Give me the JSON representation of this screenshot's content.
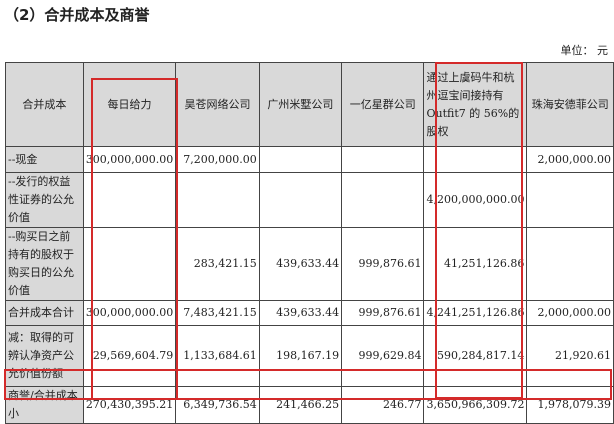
{
  "title": "（2）合并成本及商誉",
  "unit": "单位： 元",
  "highlight_color": "#d42a2a",
  "headers": [
    "合并成本",
    "每日给力",
    "昊苍网络公司",
    "广州米墅公司",
    "一亿星群公司",
    "通过上虞码牛和杭州逗宝间接持有 Outfit7 的 56%的股权",
    "珠海安德菲公司"
  ],
  "rows": [
    {
      "label": "--现金",
      "values": [
        "300,000,000.00",
        "7,200,000.00",
        "",
        "",
        "",
        "2,000,000.00"
      ]
    },
    {
      "label": "--发行的权益性证券的公允价值",
      "values": [
        "",
        "",
        "",
        "",
        "4,200,000,000.00",
        ""
      ]
    },
    {
      "label": "--购买日之前持有的股权于购买日的公允价值",
      "values": [
        "",
        "283,421.15",
        "439,633.44",
        "999,876.61",
        "41,251,126.86",
        ""
      ]
    },
    {
      "label": "合并成本合计",
      "values": [
        "300,000,000.00",
        "7,483,421.15",
        "439,633.44",
        "999,876.61",
        "4,241,251,126.86",
        "2,000,000.00"
      ]
    },
    {
      "label": "减：取得的可辨认净资产公允价值份额",
      "values": [
        "29,569,604.79",
        "1,133,684.61",
        "198,167.19",
        "999,629.84",
        "590,284,817.14",
        "21,920.61"
      ]
    },
    {
      "label": "商誉/合并成本小",
      "values": [
        "270,430,395.21",
        "6,349,736.54",
        "241,466.25",
        "246.77",
        "3,650,966,309.72",
        "1,978,079.39"
      ]
    }
  ]
}
